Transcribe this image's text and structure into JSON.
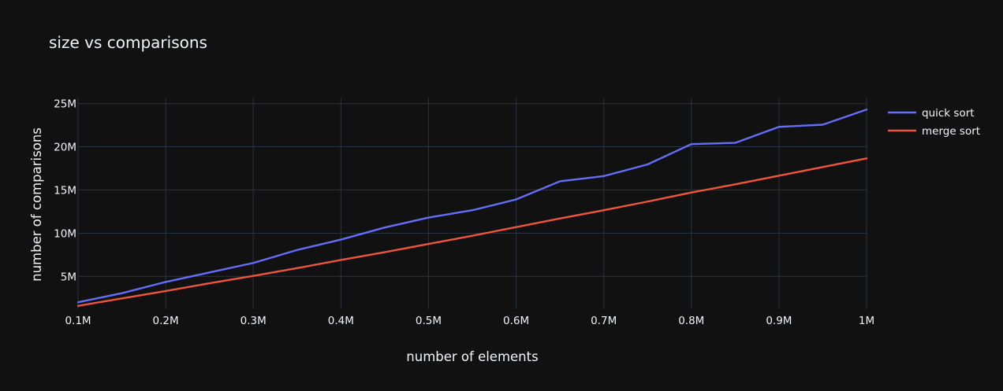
{
  "chart_data": {
    "type": "line",
    "title": "size vs comparisons",
    "xlabel": "number of elements",
    "ylabel": "number of comparisons",
    "x": [
      100000,
      150000,
      200000,
      250000,
      300000,
      350000,
      400000,
      450000,
      500000,
      550000,
      600000,
      650000,
      700000,
      750000,
      800000,
      850000,
      900000,
      950000,
      1000000
    ],
    "series": [
      {
        "name": "quick sort",
        "color": "#636efa",
        "values": [
          2000000,
          3050000,
          4350000,
          5450000,
          6550000,
          8050000,
          9250000,
          10650000,
          11800000,
          12650000,
          13900000,
          16000000,
          16600000,
          17950000,
          20300000,
          20450000,
          22300000,
          22550000,
          24300000
        ]
      },
      {
        "name": "merge sort",
        "color": "#EF553B",
        "values": [
          1580000,
          2450000,
          3300000,
          4200000,
          5050000,
          5950000,
          6900000,
          7800000,
          8750000,
          9700000,
          10700000,
          11700000,
          12650000,
          13650000,
          14700000,
          15650000,
          16650000,
          17650000,
          18650000
        ]
      }
    ],
    "xlim": [
      100000,
      1000000
    ],
    "ylim": [
      1200000,
      25600000
    ],
    "xticks": [
      100000,
      200000,
      300000,
      400000,
      500000,
      600000,
      700000,
      800000,
      900000,
      1000000
    ],
    "xtick_labels": [
      "0.1M",
      "0.2M",
      "0.3M",
      "0.4M",
      "0.5M",
      "0.6M",
      "0.7M",
      "0.8M",
      "0.9M",
      "1M"
    ],
    "yticks": [
      5000000,
      10000000,
      15000000,
      20000000,
      25000000
    ],
    "ytick_labels": [
      "5M",
      "10M",
      "15M",
      "20M",
      "25M"
    ],
    "grid": true,
    "legend_position": "top-right",
    "background": "#111111",
    "gridcolor": "#283442",
    "textcolor": "#f2f5fa"
  }
}
